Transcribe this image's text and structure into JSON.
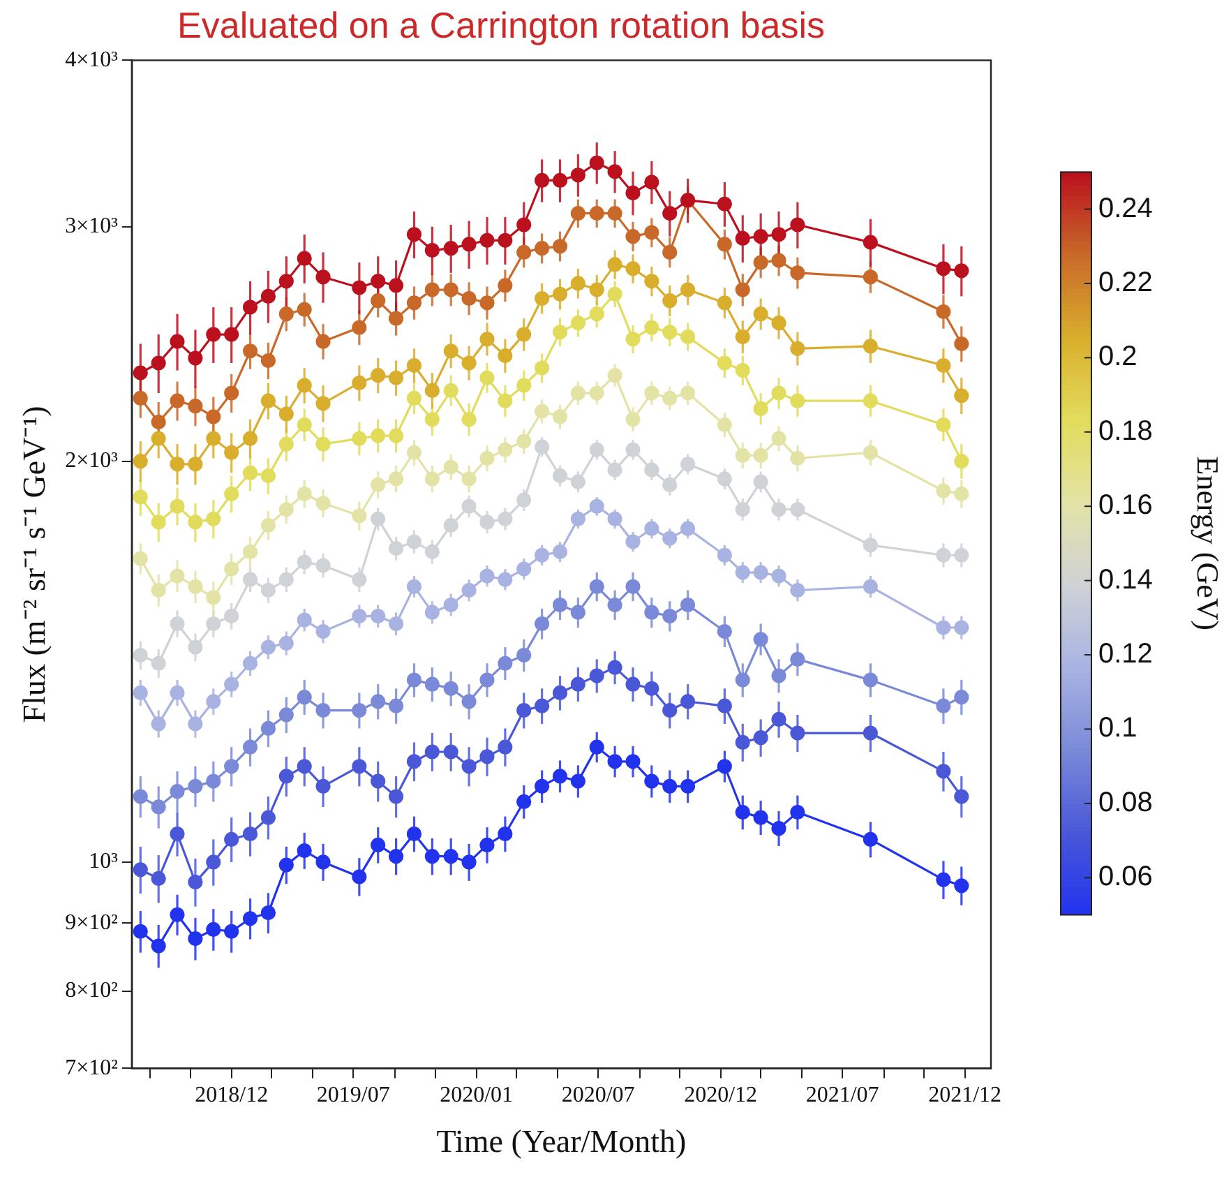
{
  "chart_data": {
    "type": "line",
    "title": "Evaluated on a Carrington rotation basis",
    "xlabel": "Time (Year/Month)",
    "ylabel": "Flux (m⁻² sr⁻¹ s⁻¹ GeV⁻¹)",
    "clabel": "Energy (GeV)",
    "clim": [
      0.05,
      0.25
    ],
    "cticks": [
      0.06,
      0.08,
      0.1,
      0.12,
      0.14,
      0.16,
      0.18,
      0.2,
      0.22,
      0.24
    ],
    "log": "y",
    "grid": false,
    "legend": false,
    "marker": "circle",
    "line_style": "solid",
    "xlim": [
      "2018-08-04",
      "2022-02-08"
    ],
    "xticks": [
      {
        "value": "2018-08-31",
        "label": null
      },
      {
        "value": "2018-10-31",
        "label": null
      },
      {
        "value": "2018-12-31",
        "label": "2018/12"
      },
      {
        "value": "2019-03-01",
        "label": null
      },
      {
        "value": "2019-05-01",
        "label": null
      },
      {
        "value": "2019-07-01",
        "label": "2019/07"
      },
      {
        "value": "2019-09-01",
        "label": null
      },
      {
        "value": "2019-11-01",
        "label": null
      },
      {
        "value": "2020-01-01",
        "label": "2020/01"
      },
      {
        "value": "2020-03-01",
        "label": null
      },
      {
        "value": "2020-05-01",
        "label": null
      },
      {
        "value": "2020-07-01",
        "label": "2020/07"
      },
      {
        "value": "2020-09-01",
        "label": null
      },
      {
        "value": "2020-10-31",
        "label": null
      },
      {
        "value": "2020-12-31",
        "label": "2020/12"
      },
      {
        "value": "2021-03-01",
        "label": null
      },
      {
        "value": "2021-05-01",
        "label": null
      },
      {
        "value": "2021-07-01",
        "label": "2021/07"
      },
      {
        "value": "2021-09-01",
        "label": null
      },
      {
        "value": "2021-10-31",
        "label": null
      },
      {
        "value": "2021-12-31",
        "label": "2021/12"
      }
    ],
    "ylim": [
      700,
      4000
    ],
    "yticks": [
      {
        "value": 700,
        "label": "7×10²"
      },
      {
        "value": 800,
        "label": "8×10²"
      },
      {
        "value": 900,
        "label": "9×10²"
      },
      {
        "value": 1000,
        "label": "10³"
      },
      {
        "value": 2000,
        "label": "2×10³"
      },
      {
        "value": 3000,
        "label": "3×10³"
      },
      {
        "value": 4000,
        "label": "4×10³"
      }
    ],
    "x": [
      "2018-08-17",
      "2018-09-13",
      "2018-10-11",
      "2018-11-07",
      "2018-12-04",
      "2018-12-31",
      "2019-01-28",
      "2019-02-24",
      "2019-03-23",
      "2019-04-19",
      "2019-05-17",
      "2019-07-10",
      "2019-08-07",
      "2019-09-03",
      "2019-09-30",
      "2019-10-27",
      "2019-11-24",
      "2019-12-21",
      "2020-01-17",
      "2020-02-13",
      "2020-03-12",
      "2020-04-08",
      "2020-05-05",
      "2020-06-01",
      "2020-06-29",
      "2020-07-26",
      "2020-08-22",
      "2020-09-19",
      "2020-10-16",
      "2020-11-12",
      "2021-01-06",
      "2021-02-02",
      "2021-03-01",
      "2021-03-28",
      "2021-04-25",
      "2021-08-12",
      "2021-11-29",
      "2021-12-26"
    ],
    "series": [
      {
        "color": "#2233ee",
        "values": [
          887,
          865,
          913,
          876,
          890,
          887,
          907,
          916,
          995,
          1020,
          1000,
          975,
          1030,
          1010,
          1050,
          1010,
          1010,
          1000,
          1030,
          1050,
          1110,
          1140,
          1160,
          1150,
          1220,
          1190,
          1190,
          1150,
          1140,
          1140,
          1180,
          1090,
          1080,
          1060,
          1090,
          1040,
          970,
          960
        ],
        "errors": [
          32,
          32,
          32,
          32,
          32,
          32,
          32,
          32,
          32,
          32,
          32,
          32,
          32,
          32,
          32,
          32,
          32,
          32,
          32,
          32,
          32,
          32,
          32,
          32,
          32,
          32,
          32,
          32,
          32,
          32,
          32,
          32,
          32,
          32,
          32,
          32,
          32,
          32
        ]
      },
      {
        "color": "#4a58d8",
        "values": [
          987,
          972,
          1050,
          966,
          1000,
          1040,
          1050,
          1080,
          1160,
          1180,
          1140,
          1180,
          1150,
          1120,
          1190,
          1210,
          1210,
          1180,
          1200,
          1220,
          1300,
          1310,
          1340,
          1360,
          1380,
          1400,
          1360,
          1350,
          1300,
          1320,
          1310,
          1230,
          1240,
          1280,
          1250,
          1250,
          1170,
          1120
        ],
        "errors": [
          40,
          40,
          40,
          40,
          40,
          40,
          40,
          40,
          40,
          40,
          40,
          40,
          40,
          40,
          40,
          40,
          40,
          40,
          40,
          40,
          40,
          40,
          40,
          40,
          40,
          40,
          40,
          40,
          40,
          40,
          40,
          40,
          40,
          40,
          40,
          40,
          40,
          40
        ]
      },
      {
        "color": "#7a8ad8",
        "values": [
          1120,
          1100,
          1130,
          1140,
          1150,
          1180,
          1220,
          1260,
          1290,
          1330,
          1300,
          1300,
          1320,
          1310,
          1370,
          1360,
          1350,
          1320,
          1370,
          1410,
          1430,
          1510,
          1560,
          1540,
          1610,
          1560,
          1610,
          1540,
          1530,
          1560,
          1490,
          1370,
          1470,
          1380,
          1420,
          1370,
          1310,
          1330
        ],
        "errors": [
          40,
          40,
          40,
          40,
          40,
          40,
          40,
          40,
          40,
          40,
          40,
          40,
          40,
          40,
          40,
          40,
          40,
          40,
          40,
          40,
          40,
          40,
          40,
          40,
          40,
          40,
          40,
          40,
          40,
          40,
          40,
          40,
          40,
          40,
          40,
          40,
          40,
          40
        ]
      },
      {
        "color": "#a9b3e2",
        "values": [
          1340,
          1270,
          1340,
          1270,
          1320,
          1360,
          1410,
          1450,
          1460,
          1520,
          1490,
          1530,
          1530,
          1510,
          1610,
          1540,
          1560,
          1600,
          1640,
          1630,
          1660,
          1700,
          1710,
          1810,
          1850,
          1810,
          1740,
          1780,
          1750,
          1780,
          1700,
          1650,
          1650,
          1640,
          1600,
          1610,
          1500,
          1500
        ],
        "errors": [
          30,
          30,
          30,
          30,
          30,
          30,
          30,
          30,
          30,
          30,
          30,
          30,
          30,
          30,
          30,
          30,
          30,
          30,
          30,
          30,
          30,
          30,
          30,
          30,
          30,
          30,
          30,
          30,
          30,
          30,
          30,
          30,
          30,
          30,
          30,
          30,
          30,
          30
        ]
      },
      {
        "color": "#cfd2d6",
        "values": [
          1430,
          1410,
          1510,
          1450,
          1510,
          1530,
          1630,
          1600,
          1630,
          1680,
          1670,
          1630,
          1810,
          1720,
          1740,
          1710,
          1790,
          1850,
          1800,
          1810,
          1870,
          2050,
          1950,
          1930,
          2040,
          1970,
          2040,
          1970,
          1920,
          1990,
          1940,
          1840,
          1930,
          1840,
          1840,
          1730,
          1700,
          1700
        ],
        "errors": [
          35,
          35,
          35,
          35,
          35,
          35,
          35,
          35,
          35,
          35,
          35,
          35,
          35,
          35,
          35,
          35,
          35,
          35,
          35,
          35,
          35,
          35,
          35,
          35,
          35,
          35,
          35,
          35,
          35,
          35,
          35,
          35,
          35,
          35,
          35,
          35,
          35,
          35
        ]
      },
      {
        "color": "#e3e3a6",
        "values": [
          1690,
          1600,
          1640,
          1610,
          1580,
          1660,
          1710,
          1790,
          1840,
          1890,
          1860,
          1820,
          1920,
          1940,
          2030,
          1940,
          1980,
          1940,
          2010,
          2040,
          2070,
          2180,
          2160,
          2250,
          2250,
          2320,
          2150,
          2250,
          2230,
          2250,
          2130,
          2020,
          2020,
          2080,
          2010,
          2030,
          1900,
          1890
        ],
        "errors": [
          45,
          45,
          45,
          45,
          45,
          45,
          45,
          45,
          45,
          45,
          45,
          45,
          45,
          45,
          45,
          45,
          45,
          45,
          45,
          45,
          45,
          45,
          45,
          45,
          45,
          45,
          45,
          45,
          45,
          45,
          45,
          45,
          45,
          45,
          45,
          45,
          45,
          45
        ]
      },
      {
        "color": "#e2dc5c",
        "values": [
          1880,
          1800,
          1850,
          1800,
          1810,
          1890,
          1960,
          1950,
          2060,
          2130,
          2060,
          2080,
          2090,
          2090,
          2230,
          2150,
          2260,
          2150,
          2310,
          2220,
          2280,
          2350,
          2500,
          2540,
          2580,
          2670,
          2470,
          2520,
          2500,
          2480,
          2370,
          2340,
          2190,
          2250,
          2220,
          2220,
          2130,
          2000
        ],
        "errors": [
          60,
          60,
          60,
          60,
          60,
          60,
          60,
          60,
          60,
          60,
          60,
          60,
          60,
          60,
          60,
          60,
          60,
          60,
          60,
          60,
          60,
          60,
          60,
          60,
          60,
          60,
          60,
          60,
          60,
          60,
          60,
          60,
          60,
          60,
          60,
          60,
          60,
          60
        ]
      },
      {
        "color": "#d9ae2c",
        "values": [
          2000,
          2080,
          1990,
          1990,
          2080,
          2030,
          2080,
          2220,
          2170,
          2280,
          2210,
          2290,
          2320,
          2310,
          2360,
          2260,
          2420,
          2370,
          2470,
          2400,
          2490,
          2650,
          2670,
          2720,
          2690,
          2810,
          2790,
          2730,
          2640,
          2690,
          2630,
          2480,
          2580,
          2540,
          2430,
          2440,
          2360,
          2240
        ],
        "errors": [
          70,
          70,
          70,
          70,
          70,
          70,
          70,
          70,
          70,
          70,
          70,
          70,
          70,
          70,
          70,
          70,
          70,
          70,
          70,
          70,
          70,
          70,
          70,
          70,
          70,
          70,
          70,
          70,
          70,
          70,
          70,
          70,
          70,
          70,
          70,
          70,
          70,
          70
        ]
      },
      {
        "color": "#c8692a",
        "values": [
          2230,
          2140,
          2220,
          2200,
          2160,
          2250,
          2420,
          2380,
          2580,
          2600,
          2460,
          2520,
          2640,
          2560,
          2630,
          2690,
          2690,
          2650,
          2630,
          2710,
          2870,
          2890,
          2900,
          3070,
          3070,
          3070,
          2950,
          2970,
          2870,
          3140,
          2910,
          2690,
          2820,
          2830,
          2770,
          2750,
          2590,
          2450
        ],
        "errors": [
          75,
          75,
          75,
          75,
          75,
          75,
          75,
          75,
          75,
          75,
          75,
          75,
          75,
          75,
          75,
          75,
          75,
          75,
          75,
          75,
          75,
          75,
          75,
          75,
          75,
          75,
          75,
          75,
          75,
          75,
          75,
          75,
          75,
          75,
          75,
          75,
          75,
          75
        ]
      },
      {
        "color": "#bb111e",
        "values": [
          2330,
          2370,
          2460,
          2390,
          2490,
          2490,
          2610,
          2660,
          2730,
          2840,
          2750,
          2700,
          2730,
          2710,
          2960,
          2880,
          2890,
          2910,
          2930,
          2930,
          3010,
          3250,
          3250,
          3280,
          3350,
          3300,
          3180,
          3240,
          3070,
          3140,
          3120,
          2940,
          2950,
          2960,
          3010,
          2920,
          2790,
          2780
        ],
        "errors": [
          120,
          120,
          120,
          120,
          120,
          120,
          120,
          120,
          120,
          120,
          120,
          120,
          120,
          120,
          120,
          120,
          120,
          120,
          120,
          120,
          120,
          120,
          120,
          120,
          120,
          120,
          120,
          120,
          120,
          120,
          120,
          120,
          120,
          120,
          120,
          120,
          120,
          120
        ]
      }
    ]
  }
}
